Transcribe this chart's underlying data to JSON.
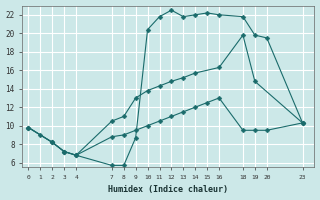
{
  "xlabel": "Humidex (Indice chaleur)",
  "background_color": "#cce8e8",
  "grid_color": "#ffffff",
  "line_color": "#1a6b6b",
  "line1_x": [
    0,
    1,
    2,
    3,
    4,
    7,
    8,
    9,
    10,
    11,
    12,
    13,
    14,
    15,
    16,
    18,
    19,
    20,
    23
  ],
  "line1_y": [
    9.8,
    9.0,
    8.2,
    7.2,
    6.8,
    5.7,
    5.7,
    8.7,
    20.4,
    21.8,
    22.5,
    21.8,
    22.0,
    22.2,
    22.0,
    21.8,
    19.8,
    19.5,
    10.3
  ],
  "line2_x": [
    0,
    2,
    3,
    4,
    7,
    8,
    9,
    10,
    11,
    12,
    13,
    14,
    16,
    18,
    19,
    23
  ],
  "line2_y": [
    9.8,
    8.2,
    7.2,
    6.8,
    10.5,
    11.0,
    13.0,
    13.8,
    14.3,
    14.8,
    15.2,
    15.7,
    16.3,
    19.8,
    14.8,
    10.3
  ],
  "line3_x": [
    0,
    2,
    3,
    4,
    7,
    8,
    9,
    10,
    11,
    12,
    13,
    14,
    15,
    16,
    18,
    19,
    20,
    23
  ],
  "line3_y": [
    9.8,
    8.2,
    7.2,
    6.8,
    8.8,
    9.0,
    9.5,
    10.0,
    10.5,
    11.0,
    11.5,
    12.0,
    12.5,
    13.0,
    9.5,
    9.5,
    9.5,
    10.3
  ],
  "xlim": [
    -0.5,
    24
  ],
  "ylim": [
    5.5,
    23
  ],
  "yticks": [
    6,
    8,
    10,
    12,
    14,
    16,
    18,
    20,
    22
  ],
  "xticks": [
    0,
    1,
    2,
    3,
    4,
    7,
    8,
    9,
    10,
    11,
    12,
    13,
    14,
    15,
    16,
    18,
    19,
    20,
    23
  ]
}
